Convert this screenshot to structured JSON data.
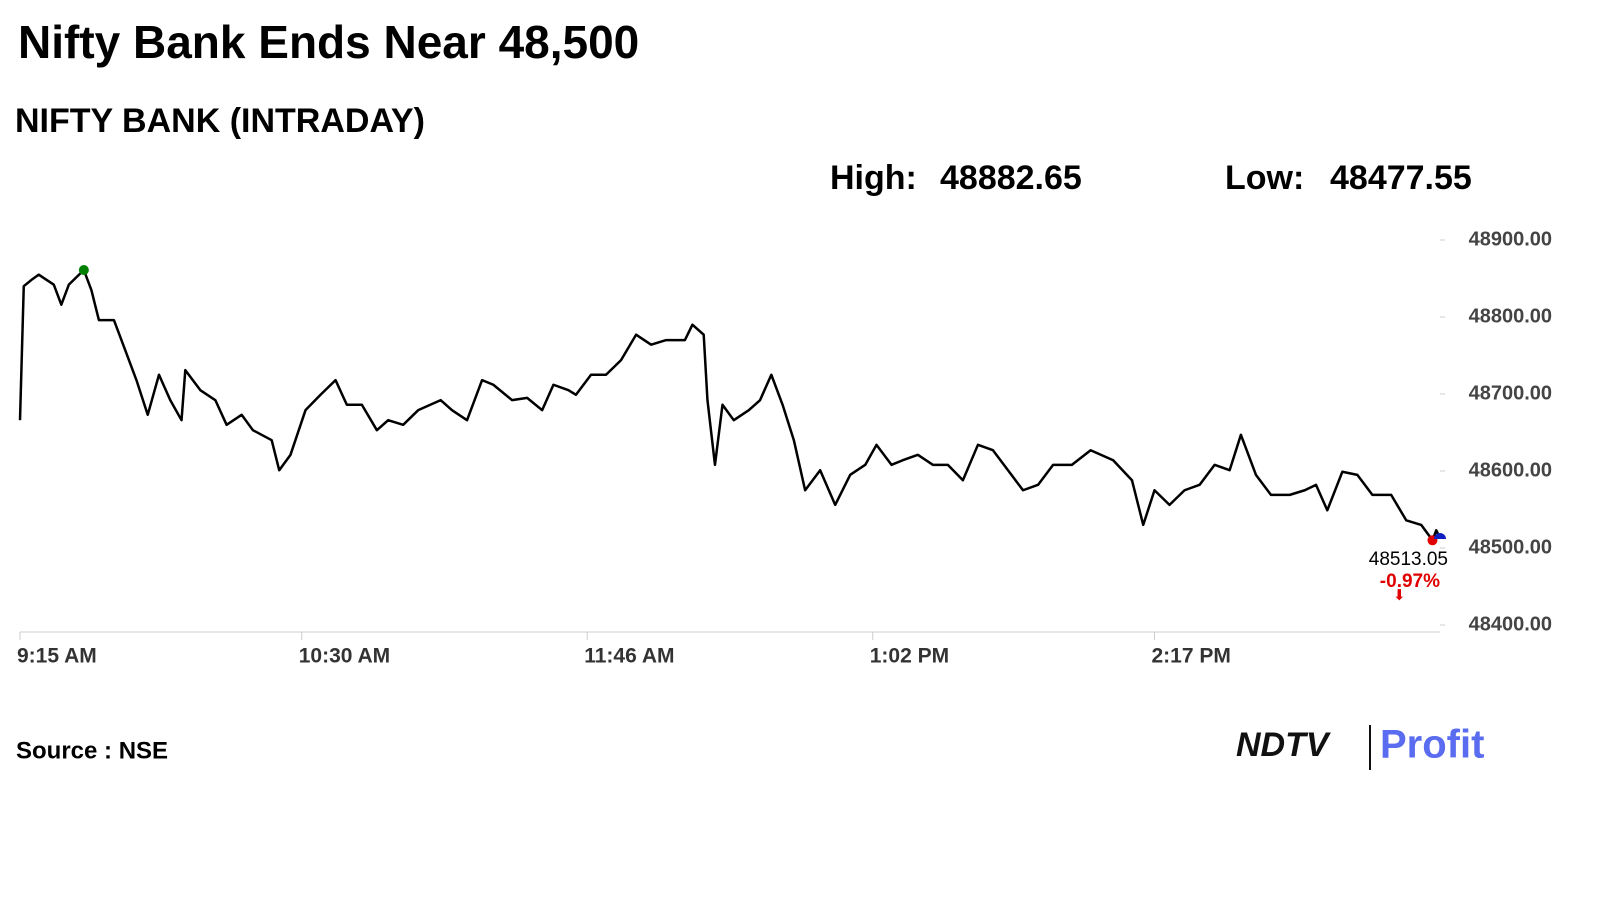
{
  "chart_data": {
    "type": "line",
    "title": "Nifty Bank Ends Near 48,500",
    "subtitle": "NIFTY BANK (INTRADAY)",
    "high_label": "High:",
    "high": 48882.65,
    "low_label": "Low:",
    "low": 48477.55,
    "close": 48513.05,
    "change": {
      "value": -0.97,
      "label": "-0.97%"
    },
    "source": "Source : NSE",
    "logo": [
      "NDTV",
      "Profit"
    ],
    "color": "#000000",
    "xlim": [
      555,
      935
    ],
    "xticks": [
      {
        "value": 555,
        "label": "9:15 AM"
      },
      {
        "value": 630,
        "label": "10:30 AM"
      },
      {
        "value": 706,
        "label": "11:46 AM"
      },
      {
        "value": 782,
        "label": "1:02 PM"
      },
      {
        "value": 857,
        "label": "2:17 PM"
      }
    ],
    "ylim": [
      48400,
      48900
    ],
    "yticks": [
      {
        "value": 48400,
        "label": "48400.00"
      },
      {
        "value": 48500,
        "label": "48500.00"
      },
      {
        "value": 48600,
        "label": "48600.00"
      },
      {
        "value": 48700,
        "label": "48700.00"
      },
      {
        "value": 48800,
        "label": "48800.00"
      },
      {
        "value": 48900,
        "label": "48900.00"
      }
    ],
    "x": [
      555,
      556,
      558,
      560,
      564,
      566,
      568,
      572,
      574,
      576,
      580,
      583,
      586,
      589,
      592,
      595,
      598,
      599,
      603,
      607,
      610,
      614,
      617,
      622,
      624,
      627,
      631,
      635,
      639,
      642,
      646,
      650,
      653,
      657,
      661,
      667,
      670,
      674,
      678,
      681,
      686,
      690,
      694,
      697,
      701,
      703,
      707,
      711,
      715,
      719,
      723,
      727,
      732,
      734,
      737,
      738,
      740,
      742,
      745,
      749,
      752,
      755,
      758,
      761,
      764,
      768,
      772,
      776,
      780,
      783,
      787,
      790,
      794,
      798,
      802,
      806,
      810,
      814,
      818,
      822,
      826,
      830,
      835,
      840,
      846,
      851,
      854,
      857,
      861,
      865,
      869,
      873,
      877,
      880,
      884,
      888,
      893,
      897,
      900,
      903,
      907,
      911,
      915,
      920,
      924,
      928,
      931,
      932,
      933
    ],
    "values": [
      48666,
      48840,
      48848,
      48855,
      48842,
      48816,
      48842,
      48861,
      48835,
      48796,
      48796,
      48757,
      48718,
      48673,
      48725,
      48692,
      48666,
      48731,
      48705,
      48692,
      48660,
      48673,
      48653,
      48640,
      48601,
      48621,
      48679,
      48699,
      48718,
      48686,
      48686,
      48653,
      48666,
      48660,
      48679,
      48692,
      48679,
      48666,
      48718,
      48712,
      48692,
      48695,
      48679,
      48712,
      48705,
      48699,
      48725,
      48725,
      48744,
      48777,
      48764,
      48770,
      48770,
      48790,
      48777,
      48692,
      48608,
      48686,
      48666,
      48679,
      48692,
      48725,
      48686,
      48640,
      48575,
      48601,
      48556,
      48595,
      48608,
      48634,
      48608,
      48614,
      48621,
      48608,
      48608,
      48588,
      48634,
      48627,
      48601,
      48575,
      48582,
      48608,
      48608,
      48627,
      48614,
      48588,
      48530,
      48575,
      48556,
      48575,
      48582,
      48608,
      48601,
      48647,
      48595,
      48569,
      48569,
      48575,
      48582,
      48549,
      48599,
      48595,
      48569,
      48569,
      48536,
      48530,
      48510,
      48523,
      48513.05
    ]
  }
}
